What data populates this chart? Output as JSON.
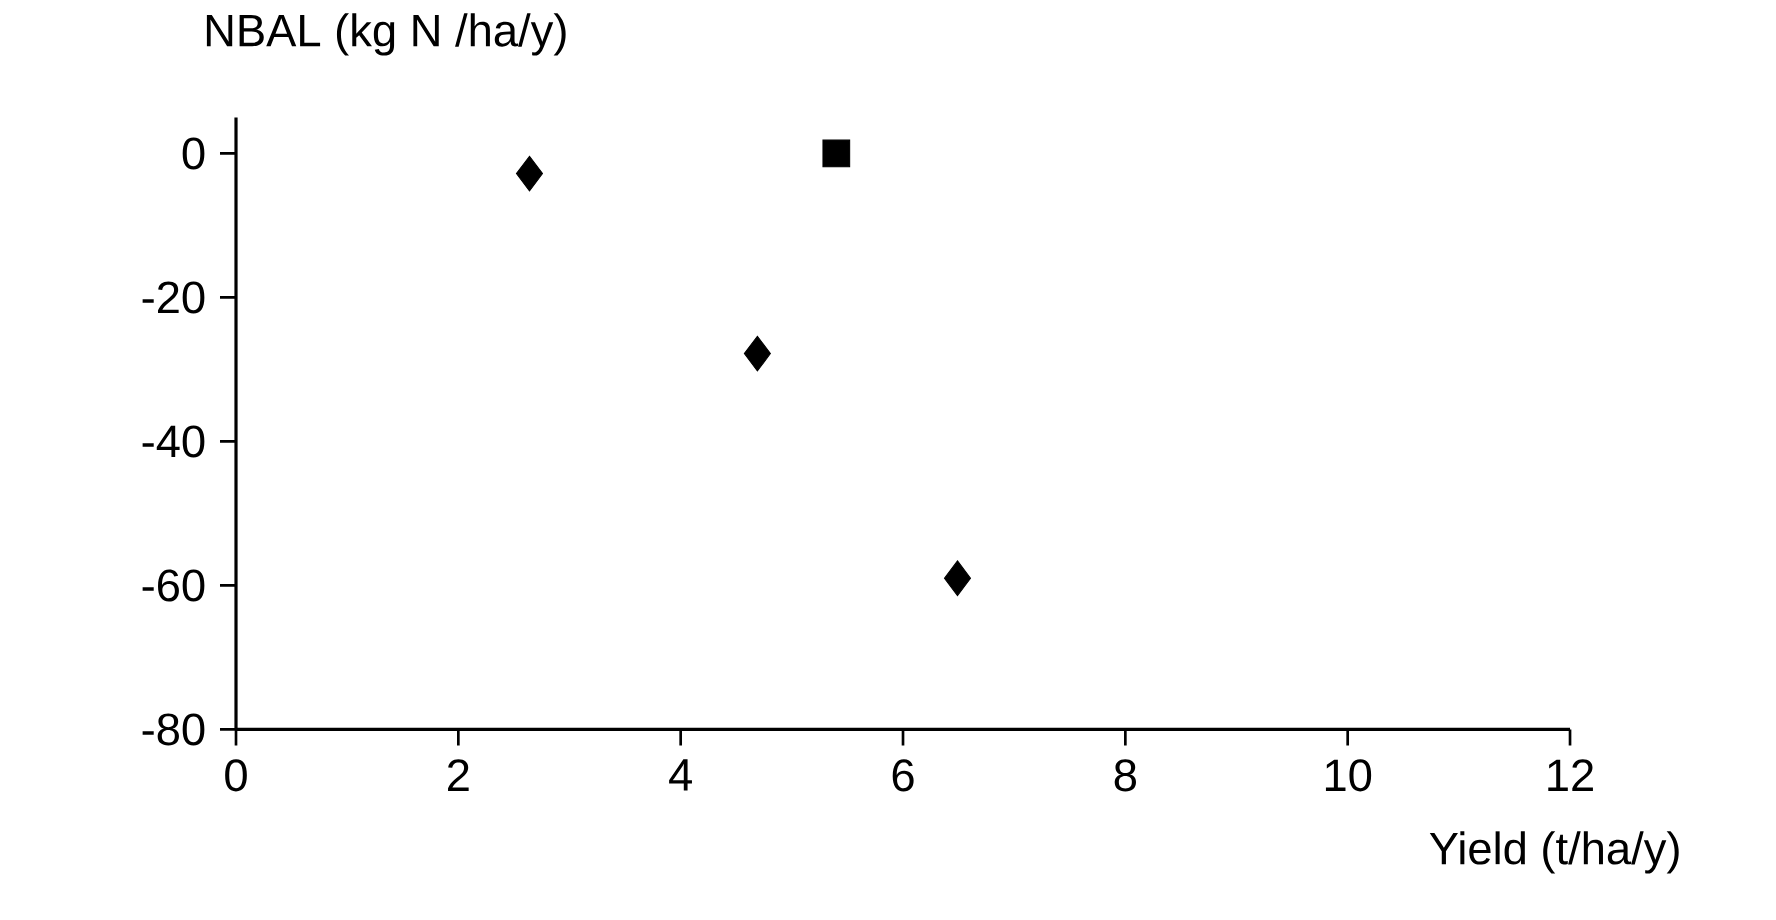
{
  "chart_data": {
    "type": "scatter",
    "xlabel": "Yield (t/ha/y)",
    "ylabel": "NBAL (kg N /ha/y)",
    "xlim": [
      0,
      12
    ],
    "ylim": [
      -80,
      5
    ],
    "xticks": [
      0,
      2,
      4,
      6,
      8,
      10,
      12
    ],
    "yticks": [
      -80,
      -60,
      -40,
      -20,
      0
    ],
    "grid": false,
    "series": [
      {
        "color": "#000000",
        "marker": "diamond",
        "x": [
          2.64,
          4.69,
          6.49
        ],
        "values": [
          -2.8,
          -27.8,
          -59
        ]
      },
      {
        "color": "#000000",
        "marker": "square",
        "x": [
          5.4
        ],
        "values": [
          0
        ]
      }
    ]
  }
}
